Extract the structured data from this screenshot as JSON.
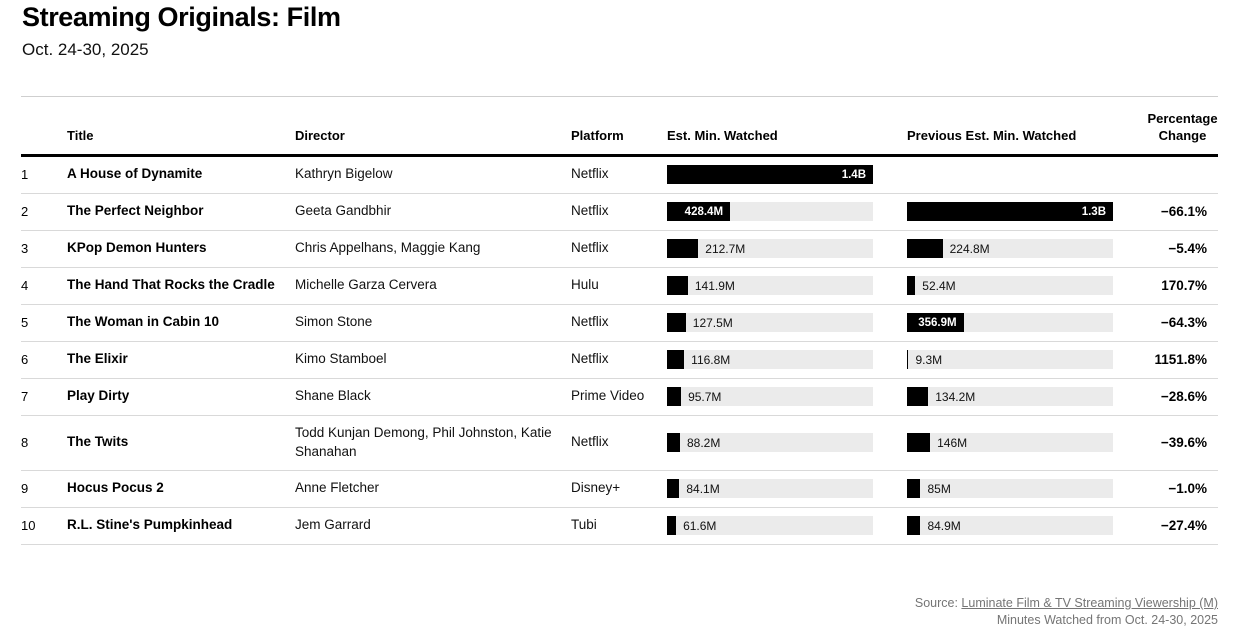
{
  "page": {
    "title": "Streaming Originals: Film",
    "subtitle": "Oct. 24-30, 2025"
  },
  "table": {
    "headers": {
      "title": "Title",
      "director": "Director",
      "platform": "Platform",
      "est": "Est. Min. Watched",
      "prev": "Previous Est. Min. Watched",
      "pct": "Percentage Change"
    },
    "rows": [
      {
        "rank": "1",
        "title": "A House of Dynamite",
        "director": "Kathryn Bigelow",
        "platform": "Netflix",
        "est_label": "1.4B",
        "est_m": 1400,
        "prev_label": "",
        "prev_m": null,
        "pct": ""
      },
      {
        "rank": "2",
        "title": "The Perfect Neighbor",
        "director": "Geeta Gandbhir",
        "platform": "Netflix",
        "est_label": "428.4M",
        "est_m": 428.4,
        "prev_label": "1.3B",
        "prev_m": 1300,
        "pct": "−66.1%"
      },
      {
        "rank": "3",
        "title": "KPop Demon Hunters",
        "director": "Chris Appelhans, Maggie Kang",
        "platform": "Netflix",
        "est_label": "212.7M",
        "est_m": 212.7,
        "prev_label": "224.8M",
        "prev_m": 224.8,
        "pct": "−5.4%"
      },
      {
        "rank": "4",
        "title": "The Hand That Rocks the Cradle",
        "director": "Michelle Garza Cervera",
        "platform": "Hulu",
        "est_label": "141.9M",
        "est_m": 141.9,
        "prev_label": "52.4M",
        "prev_m": 52.4,
        "pct": "170.7%"
      },
      {
        "rank": "5",
        "title": "The Woman in Cabin 10",
        "director": "Simon Stone",
        "platform": "Netflix",
        "est_label": "127.5M",
        "est_m": 127.5,
        "prev_label": "356.9M",
        "prev_m": 356.9,
        "pct": "−64.3%"
      },
      {
        "rank": "6",
        "title": "The Elixir",
        "director": "Kimo Stamboel",
        "platform": "Netflix",
        "est_label": "116.8M",
        "est_m": 116.8,
        "prev_label": "9.3M",
        "prev_m": 9.3,
        "pct": "1151.8%"
      },
      {
        "rank": "7",
        "title": "Play Dirty",
        "director": "Shane Black",
        "platform": "Prime Video",
        "est_label": "95.7M",
        "est_m": 95.7,
        "prev_label": "134.2M",
        "prev_m": 134.2,
        "pct": "−28.6%"
      },
      {
        "rank": "8",
        "title": "The Twits",
        "director": "Todd Kunjan Demong, Phil Johnston, Katie Shanahan",
        "platform": "Netflix",
        "est_label": "88.2M",
        "est_m": 88.2,
        "prev_label": "146M",
        "prev_m": 146,
        "pct": "−39.6%"
      },
      {
        "rank": "9",
        "title": "Hocus Pocus 2",
        "director": "Anne Fletcher",
        "platform": "Disney+",
        "est_label": "84.1M",
        "est_m": 84.1,
        "prev_label": "85M",
        "prev_m": 85,
        "pct": "−1.0%"
      },
      {
        "rank": "10",
        "title": "R.L. Stine's Pumpkinhead",
        "director": "Jem Garrard",
        "platform": "Tubi",
        "est_label": "61.6M",
        "est_m": 61.6,
        "prev_label": "84.9M",
        "prev_m": 84.9,
        "pct": "−27.4%"
      }
    ]
  },
  "chart_data": {
    "type": "table",
    "title": "Streaming Originals: Film",
    "subtitle": "Oct. 24-30, 2025",
    "columns": [
      "Title",
      "Director",
      "Platform",
      "Est. Min. Watched",
      "Previous Est. Min. Watched",
      "Percentage Change"
    ],
    "units": "minutes watched, millions",
    "categories": [
      "A House of Dynamite",
      "The Perfect Neighbor",
      "KPop Demon Hunters",
      "The Hand That Rocks the Cradle",
      "The Woman in Cabin 10",
      "The Elixir",
      "Play Dirty",
      "The Twits",
      "Hocus Pocus 2",
      "R.L. Stine's Pumpkinhead"
    ],
    "series": [
      {
        "name": "Est. Min. Watched (M)",
        "values": [
          1400,
          428.4,
          212.7,
          141.9,
          127.5,
          116.8,
          95.7,
          88.2,
          84.1,
          61.6
        ]
      },
      {
        "name": "Previous Est. Min. Watched (M)",
        "values": [
          null,
          1300,
          224.8,
          52.4,
          356.9,
          9.3,
          134.2,
          146,
          85,
          84.9
        ]
      },
      {
        "name": "Percentage Change (%)",
        "values": [
          null,
          -66.1,
          -5.4,
          170.7,
          -64.3,
          1151.8,
          -28.6,
          -39.6,
          -1.0,
          -27.4
        ]
      }
    ],
    "bar_scale": {
      "est_column_max_m": 1400,
      "prev_column_max_m": 1300
    },
    "layout": "horizontal bars inside table cells, each bar column scaled to its own maximum"
  },
  "footer": {
    "source_prefix": "Source: ",
    "source_link": "Luminate Film & TV Streaming Viewership (M)",
    "note": "Minutes Watched from Oct. 24-30, 2025"
  },
  "colors": {
    "bar_fill": "#000000",
    "bar_track": "#ebebeb",
    "separator": "#d9d9d9",
    "header_rule": "#000000",
    "footer_text": "#757575"
  }
}
